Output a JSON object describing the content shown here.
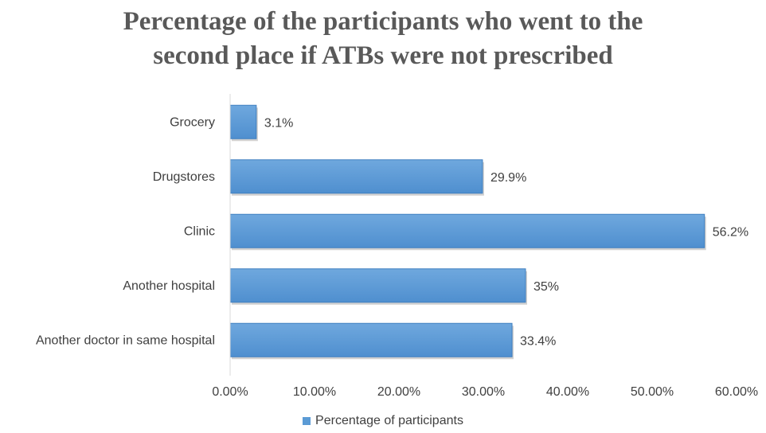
{
  "chart_data": {
    "type": "bar",
    "orientation": "horizontal",
    "title_lines": [
      "Percentage of the participants who went to the",
      "second place if ATBs were not prescribed"
    ],
    "categories": [
      "Grocery",
      "Drugstores",
      "Clinic",
      "Another hospital",
      "Another doctor in same hospital"
    ],
    "series": [
      {
        "name": "Percentage of participants",
        "values": [
          3.1,
          29.9,
          56.2,
          35,
          33.4
        ],
        "labels": [
          "3.1%",
          "29.9%",
          "56.2%",
          "35%",
          "33.4%"
        ]
      }
    ],
    "xlim": [
      0,
      60
    ],
    "x_ticks": [
      0,
      10,
      20,
      30,
      40,
      50,
      60
    ],
    "x_tick_labels": [
      "0.00%",
      "10.00%",
      "20.00%",
      "30.00%",
      "40.00%",
      "50.00%",
      "60.00%"
    ],
    "grid": false,
    "legend_position": "bottom",
    "bar_color": "#5b9bd5",
    "bar_edge_color": "#3f7fc0",
    "text_color": "#404040",
    "axis_color": "#d9d9d9"
  }
}
